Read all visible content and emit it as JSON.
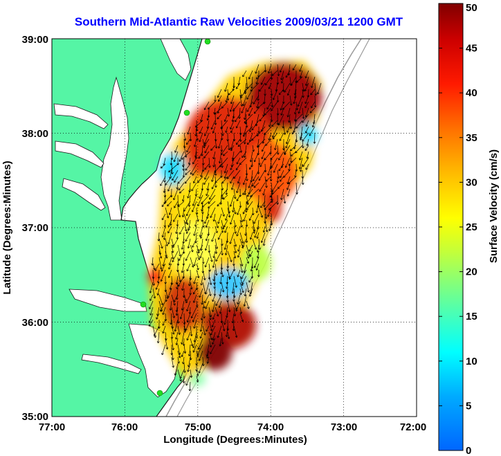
{
  "title": "Southern Mid-Atlantic Raw Velocities 2009/03/21 1200 GMT",
  "map": {
    "xlabel": "Longitude (Degrees:Minutes)",
    "ylabel": "Latitude (Degrees:Minutes)",
    "lon_ticks": [
      "77:00",
      "76:00",
      "75:00",
      "74:00",
      "73:00",
      "72:00"
    ],
    "lat_ticks": [
      "35:00",
      "36:00",
      "37:00",
      "38:00",
      "39:00"
    ],
    "lon_range": [
      -77,
      -72
    ],
    "lat_range": [
      35,
      39
    ],
    "grid": true,
    "land_color": "#55f5a5",
    "coast_color": "#1a1a1a",
    "bathymetry_color": "#9a9a9a",
    "station_color": "#22dd22"
  },
  "colorbar": {
    "label": "Surface Velocity (cm/s)",
    "min": 0,
    "max": 50,
    "ticks": [
      "0",
      "5",
      "10",
      "15",
      "20",
      "25",
      "30",
      "35",
      "40",
      "45",
      "50"
    ],
    "colormap": "jet"
  }
}
